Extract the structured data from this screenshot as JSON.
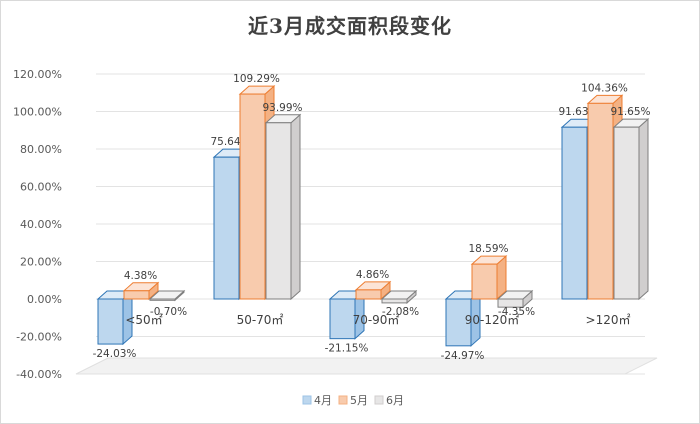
{
  "chart_data": {
    "type": "bar",
    "title": "近3月成交面积段变化",
    "xlabel": "",
    "ylabel": "",
    "categories": [
      "<50㎡",
      "50-70㎡",
      "70-90㎡",
      "90-120㎡",
      ">120㎡"
    ],
    "series": [
      {
        "name": "4月",
        "values": [
          -24.03,
          75.64,
          -21.15,
          -24.97,
          91.63
        ],
        "labels": [
          "-24.03%",
          "75.64%",
          "-21.15%",
          "-24.97%",
          "91.63%"
        ]
      },
      {
        "name": "5月",
        "values": [
          4.38,
          109.29,
          4.86,
          18.59,
          104.36
        ],
        "labels": [
          "4.38%",
          "109.29%",
          "4.86%",
          "18.59%",
          "104.36%"
        ]
      },
      {
        "name": "6月",
        "values": [
          -0.7,
          93.99,
          -2.08,
          -4.35,
          91.65
        ],
        "labels": [
          "-0.70%",
          "93.99%",
          "-2.08%",
          "-4.35%",
          "91.65%"
        ]
      }
    ],
    "ylim": [
      -40,
      120
    ],
    "yticks": [
      "-40.00%",
      "-20.00%",
      "0.00%",
      "20.00%",
      "40.00%",
      "60.00%",
      "80.00%",
      "100.00%",
      "120.00%"
    ],
    "grid": true,
    "legend": "bottom",
    "colors": {
      "4月": {
        "front": "#bdd7ee",
        "side": "#9dc3e6",
        "top": "#deebf7",
        "edge": "#2e75b6"
      },
      "5月": {
        "front": "#f8cbad",
        "side": "#f4b183",
        "top": "#fce4d6",
        "edge": "#ed7d31"
      },
      "6月": {
        "front": "#e7e6e6",
        "side": "#d0cece",
        "top": "#f2f2f2",
        "edge": "#7f7f7f"
      }
    }
  }
}
